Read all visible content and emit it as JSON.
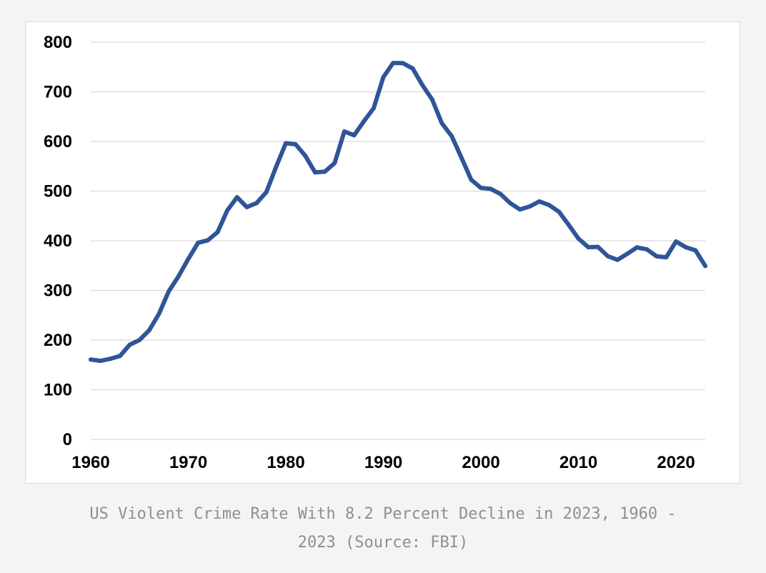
{
  "chart_data": {
    "type": "line",
    "title": "",
    "xlabel": "",
    "ylabel": "",
    "xlim": [
      1960,
      2023
    ],
    "ylim": [
      0,
      800
    ],
    "grid": true,
    "legend": "none",
    "xticks": [
      1960,
      1970,
      1980,
      1990,
      2000,
      2010,
      2020
    ],
    "yticks": [
      0,
      100,
      200,
      300,
      400,
      500,
      600,
      700,
      800
    ],
    "series": [
      {
        "color": "#2f5597",
        "x": [
          1960,
          1961,
          1962,
          1963,
          1964,
          1965,
          1966,
          1967,
          1968,
          1969,
          1970,
          1971,
          1972,
          1973,
          1974,
          1975,
          1976,
          1977,
          1978,
          1979,
          1980,
          1981,
          1982,
          1983,
          1984,
          1985,
          1986,
          1987,
          1988,
          1989,
          1990,
          1991,
          1992,
          1993,
          1994,
          1995,
          1996,
          1997,
          1998,
          1999,
          2000,
          2001,
          2002,
          2003,
          2004,
          2005,
          2006,
          2007,
          2008,
          2009,
          2010,
          2011,
          2012,
          2013,
          2014,
          2015,
          2016,
          2017,
          2018,
          2019,
          2020,
          2021,
          2022,
          2023
        ],
        "y": [
          160.9,
          158.1,
          162.3,
          168.2,
          190.6,
          200.2,
          220.0,
          253.2,
          298.4,
          328.7,
          363.5,
          396.0,
          401.0,
          417.4,
          461.1,
          487.8,
          467.8,
          475.9,
          497.8,
          548.9,
          596.6,
          594.3,
          571.1,
          537.7,
          539.2,
          556.6,
          620.1,
          612.5,
          640.6,
          666.9,
          729.6,
          758.2,
          757.7,
          747.1,
          713.6,
          684.5,
          636.6,
          611.0,
          567.6,
          523.0,
          506.5,
          504.5,
          494.4,
          475.8,
          463.2,
          469.0,
          479.3,
          471.8,
          458.6,
          431.9,
          404.5,
          387.1,
          387.8,
          369.1,
          361.6,
          373.7,
          386.6,
          382.9,
          368.9,
          366.7,
          398.5,
          387.0,
          380.7,
          349.4
        ]
      }
    ]
  },
  "caption": {
    "line1": "US Violent Crime Rate With 8.2 Percent Decline in 2023, 1960 -",
    "line2": "2023 (Source: FBI)"
  }
}
